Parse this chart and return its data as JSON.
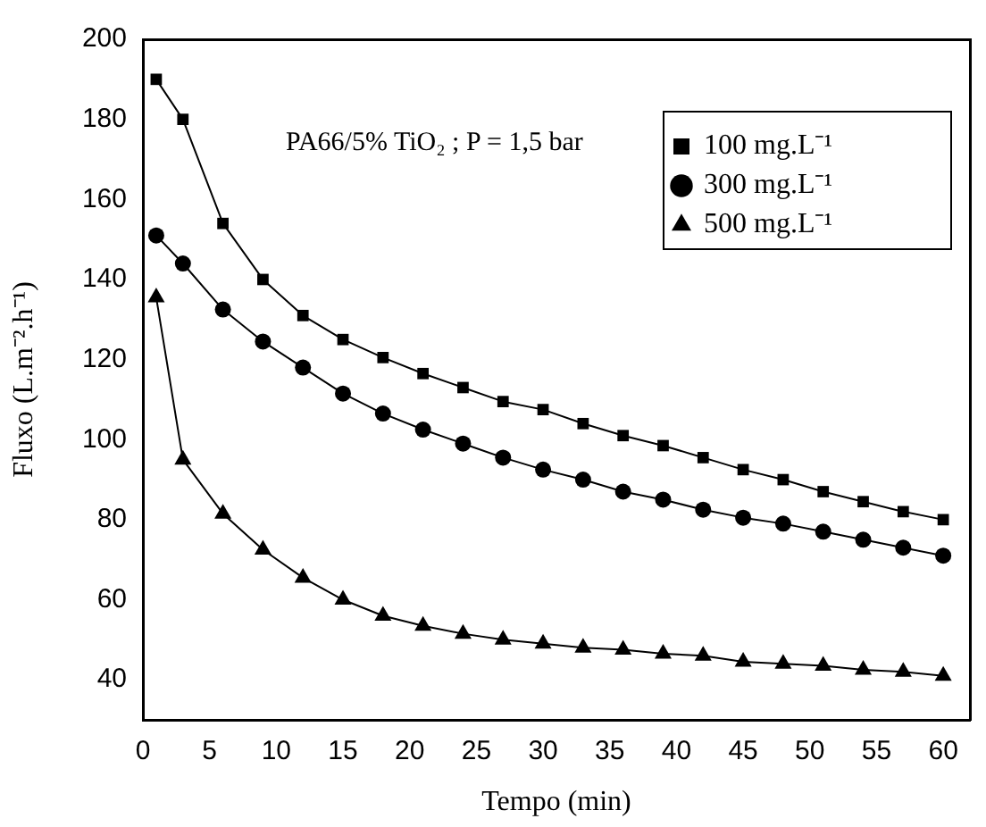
{
  "chart_data": {
    "type": "line",
    "xlabel": "Tempo (min)",
    "ylabel": "Fluxo (L.m⁻².h⁻¹)",
    "annotations": [
      "PA66/5% TiO₂ ; P = 1,5 bar"
    ],
    "x": [
      1,
      3,
      6,
      9,
      12,
      15,
      18,
      21,
      24,
      27,
      30,
      33,
      36,
      39,
      42,
      45,
      48,
      51,
      54,
      57,
      60
    ],
    "series": [
      {
        "name": "100 mg.L⁻¹",
        "color": "#000000",
        "marker": "square",
        "values": [
          190,
          180,
          154,
          140,
          131,
          125,
          120.5,
          116.5,
          113,
          109.5,
          107.5,
          104,
          101,
          98.5,
          95.5,
          92.5,
          90,
          87,
          84.5,
          82,
          80
        ]
      },
      {
        "name": "300 mg.L⁻¹",
        "color": "#000000",
        "marker": "circle",
        "values": [
          151,
          144,
          132.5,
          124.5,
          118,
          111.5,
          106.5,
          102.5,
          99,
          95.5,
          92.5,
          90,
          87,
          85,
          82.5,
          80.5,
          79,
          77,
          75,
          73,
          71
        ]
      },
      {
        "name": "500 mg.L⁻¹",
        "color": "#000000",
        "marker": "triangle",
        "values": [
          135.5,
          95,
          81.5,
          72.5,
          65.5,
          60,
          56,
          53.5,
          51.5,
          50,
          49,
          48,
          47.5,
          46.5,
          46,
          44.5,
          44,
          43.5,
          42.5,
          42,
          41
        ]
      }
    ],
    "xlim": [
      0,
      62
    ],
    "xticks": [
      0,
      5,
      10,
      15,
      20,
      25,
      30,
      35,
      40,
      45,
      50,
      55,
      60
    ],
    "ylim": [
      30,
      200
    ],
    "yticks": [
      40,
      60,
      80,
      100,
      120,
      140,
      160,
      180,
      200
    ],
    "grid": false,
    "legend": "top right",
    "line_style": "solid"
  }
}
